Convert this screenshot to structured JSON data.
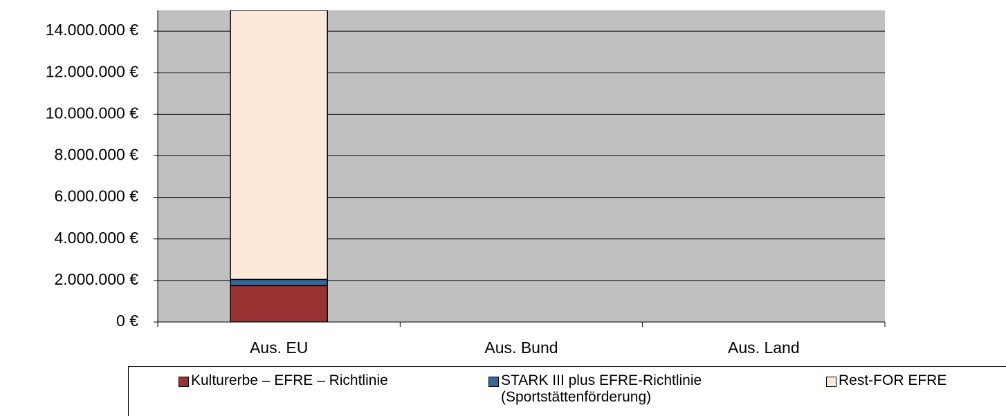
{
  "chart_data": {
    "type": "stacked_bar",
    "categories": [
      "Aus. EU",
      "Aus. Bund",
      "Aus. Land"
    ],
    "series": [
      {
        "name": "Kulturerbe – EFRE – Richtlinie",
        "color": "#993333",
        "values": [
          1750000,
          0,
          0
        ]
      },
      {
        "name": "STARK III plus EFRE-Richtlinie (Sportstättenförderung)",
        "color": "#336699",
        "values": [
          300000,
          0,
          0
        ]
      },
      {
        "name": "Rest-FOR EFRE",
        "color": "#fde9d9",
        "values": [
          12950000,
          0,
          0
        ]
      }
    ],
    "ylim": [
      0,
      15000000
    ],
    "yticks": [
      {
        "value": 0,
        "label": "0 €"
      },
      {
        "value": 2000000,
        "label": "2.000.000 €"
      },
      {
        "value": 4000000,
        "label": "4.000.000 €"
      },
      {
        "value": 6000000,
        "label": "6.000.000 €"
      },
      {
        "value": 8000000,
        "label": "8.000.000 €"
      },
      {
        "value": 10000000,
        "label": "10.000.000 €"
      },
      {
        "value": 12000000,
        "label": "12.000.000 €"
      },
      {
        "value": 14000000,
        "label": "14.000.000 €"
      }
    ],
    "grid": true,
    "background": "#c0c0c0",
    "legend": "bottom"
  }
}
